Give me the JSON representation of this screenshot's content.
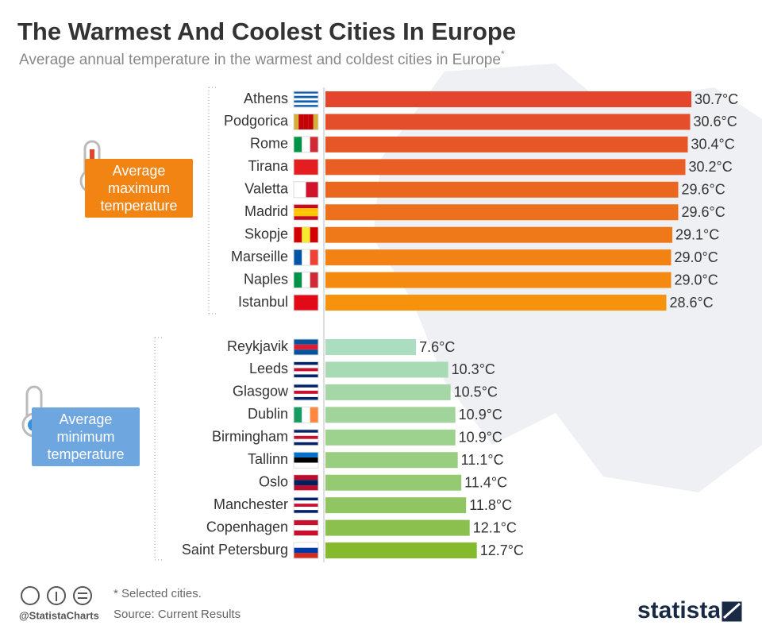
{
  "chart_data": {
    "type": "hbar",
    "title": "The Warmest And Coolest Cities In Europe",
    "subtitle": "Average annual temperature in the warmest and coldest cities in Europe",
    "subtitle_note": "*",
    "groups": [
      {
        "name": "Average maximum temperature",
        "categories": [
          "Athens",
          "Podgorica",
          "Rome",
          "Tirana",
          "Valetta",
          "Madrid",
          "Skopje",
          "Marseille",
          "Naples",
          "Istanbul"
        ],
        "values": [
          30.7,
          30.6,
          30.4,
          30.2,
          29.6,
          29.6,
          29.1,
          29.0,
          29.0,
          28.6
        ],
        "value_labels": [
          "30.7°C",
          "30.6°C",
          "30.4°C",
          "30.2°C",
          "29.6°C",
          "29.6°C",
          "29.1°C",
          "29.0°C",
          "29.0°C",
          "28.6°C"
        ],
        "colors": [
          "#e4452d",
          "#e54e2a",
          "#e75627",
          "#e95e24",
          "#eb6720",
          "#ed701c",
          "#ef7918",
          "#f28214",
          "#f48a10",
          "#f6920c"
        ],
        "label_color": "#f28414"
      },
      {
        "name": "Average minimum temperature",
        "categories": [
          "Reykjavik",
          "Leeds",
          "Glasgow",
          "Dublin",
          "Birmingham",
          "Tallinn",
          "Oslo",
          "Manchester",
          "Copenhagen",
          "Saint Petersburg"
        ],
        "values": [
          7.6,
          10.3,
          10.5,
          10.9,
          10.9,
          11.1,
          11.4,
          11.8,
          12.1,
          12.7
        ],
        "value_labels": [
          "7.6°C",
          "10.3°C",
          "10.5°C",
          "10.9°C",
          "10.9°C",
          "11.1°C",
          "11.4°C",
          "11.8°C",
          "12.1°C",
          "12.7°C"
        ],
        "colors": [
          "#abddc1",
          "#a8dab3",
          "#a5d7a6",
          "#a1d49a",
          "#9dd18e",
          "#99cd80",
          "#95ca72",
          "#90c562",
          "#8bc04f",
          "#85ba2c"
        ],
        "label_color": "#6ea6e0"
      }
    ],
    "footnote": "* Selected cities.",
    "source": "Source: Current Results",
    "handle": "@StatistaCharts",
    "brand": "statista"
  }
}
